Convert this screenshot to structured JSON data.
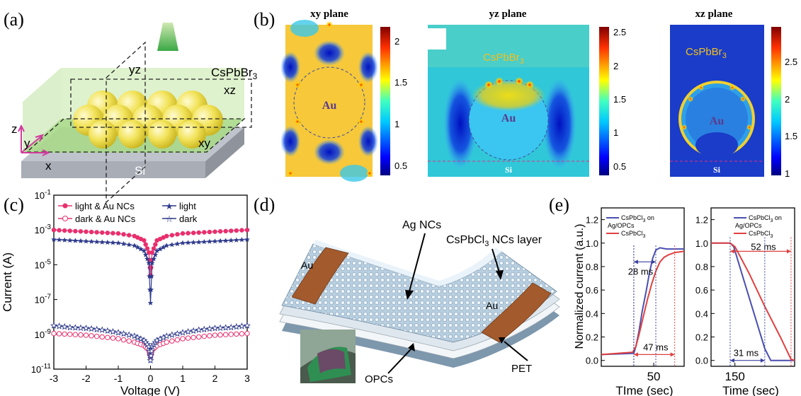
{
  "panels": {
    "a": {
      "label": "(a)",
      "labels": {
        "yz": "yz",
        "xz": "xz",
        "xy": "xy",
        "material": "CsPbBr",
        "material_sub": "3",
        "substrate": "Si",
        "axis_z": "z",
        "axis_y": "y",
        "axis_x": "x"
      }
    },
    "b": {
      "label": "(b)",
      "maps": [
        {
          "title": "xy plane",
          "particle": "Au",
          "ticks": [
            "2",
            "1.5",
            "1",
            "0.5"
          ]
        },
        {
          "title": "yz plane",
          "particle": "Au",
          "material": "CsPbBr",
          "material_sub": "3",
          "substrate": "Si",
          "ticks": [
            "2.5",
            "2",
            "1.5",
            "1",
            "0.5"
          ]
        },
        {
          "title": "xz plane",
          "particle": "Au",
          "material": "CsPbBr",
          "material_sub": "3",
          "substrate": "Si",
          "ticks": [
            "2.5",
            "2",
            "1.5",
            "1"
          ]
        }
      ]
    },
    "c": {
      "label": "(c)"
    },
    "d": {
      "label": "(d)",
      "labels": {
        "ag": "Ag NCs",
        "layer": "CsPbCl",
        "layer_sub": "3",
        "layer_suffix": " NCs layer",
        "au_left": "Au",
        "au_right": "Au",
        "opcs": "OPCs",
        "pet": "PET"
      }
    },
    "e": {
      "label": "(e)"
    }
  },
  "chart_data": [
    {
      "type": "scatter",
      "panel": "c",
      "xlabel": "Voltage (V)",
      "ylabel": "Current (A)",
      "xlim": [
        -3,
        3
      ],
      "ylim_log10": [
        -11,
        -1
      ],
      "xticks": [
        "-3",
        "-2",
        "-1",
        "0",
        "1",
        "2",
        "3"
      ],
      "yticks": [
        {
          "base": "10",
          "exp": "-1"
        },
        {
          "base": "10",
          "exp": "-3"
        },
        {
          "base": "10",
          "exp": "-5"
        },
        {
          "base": "10",
          "exp": "-7"
        },
        {
          "base": "10",
          "exp": "-9"
        },
        {
          "base": "10",
          "exp": "-11"
        }
      ],
      "legend": "top",
      "series": [
        {
          "name": "light & Au NCs",
          "color": "#e8306e",
          "marker": "filled-circle",
          "x": [
            -3,
            -2.5,
            -2,
            -1.5,
            -1,
            -0.5,
            -0.2,
            -0.05,
            0,
            0.05,
            0.2,
            0.5,
            1,
            1.5,
            2,
            2.5,
            3
          ],
          "log10_y": [
            -3.0,
            -3.05,
            -3.1,
            -3.15,
            -3.2,
            -3.35,
            -3.6,
            -4.3,
            -5.6,
            -4.3,
            -3.6,
            -3.35,
            -3.2,
            -3.15,
            -3.1,
            -3.05,
            -3.0
          ]
        },
        {
          "name": "dark & Au NCs",
          "color": "#e8306e",
          "marker": "open-circle",
          "x": [
            -3,
            -2.5,
            -2,
            -1.5,
            -1,
            -0.5,
            -0.2,
            -0.05,
            0,
            0.05,
            0.2,
            0.5,
            1,
            1.5,
            2,
            2.5,
            3
          ],
          "log10_y": [
            -8.95,
            -9.0,
            -9.05,
            -9.15,
            -9.25,
            -9.45,
            -9.65,
            -9.9,
            -10.3,
            -9.9,
            -9.65,
            -9.45,
            -9.25,
            -9.15,
            -9.05,
            -9.0,
            -8.95
          ]
        },
        {
          "name": "light",
          "color": "#2e3a8c",
          "marker": "filled-star",
          "x": [
            -3,
            -2.5,
            -2,
            -1.5,
            -1,
            -0.5,
            -0.2,
            -0.05,
            0,
            0.05,
            0.2,
            0.5,
            1,
            1.5,
            2,
            2.5,
            3
          ],
          "log10_y": [
            -3.55,
            -3.6,
            -3.65,
            -3.7,
            -3.75,
            -3.9,
            -4.2,
            -4.9,
            -7.2,
            -4.9,
            -4.2,
            -3.9,
            -3.75,
            -3.7,
            -3.65,
            -3.6,
            -3.55
          ]
        },
        {
          "name": "dark",
          "color": "#2e3a8c",
          "marker": "open-star",
          "x": [
            -3,
            -2.5,
            -2,
            -1.5,
            -1,
            -0.5,
            -0.2,
            -0.05,
            0,
            0.05,
            0.2,
            0.5,
            1,
            1.5,
            2,
            2.5,
            3
          ],
          "log10_y": [
            -8.5,
            -8.6,
            -8.65,
            -8.75,
            -8.9,
            -9.1,
            -9.35,
            -9.7,
            -10.5,
            -9.7,
            -9.35,
            -9.1,
            -8.9,
            -8.75,
            -8.65,
            -8.6,
            -8.5
          ]
        }
      ]
    },
    {
      "type": "line",
      "panel": "e-rise",
      "xlabel": "TIme (sec)",
      "ylabel": "Normalized current (a.u.)",
      "ylim": [
        -0.05,
        1.3
      ],
      "yticks": [
        "0.0",
        "0.2",
        "0.4",
        "0.6",
        "0.8",
        "1.0",
        "1.2"
      ],
      "xticks": [
        "50"
      ],
      "annotations": [
        "28 ms",
        "47 ms"
      ],
      "series": [
        {
          "name": "CsPbCl",
          "name_sub": "3",
          "name_suffix": " on Ag/OPCs",
          "color": "#4a4fb0",
          "x": [
            0,
            31,
            33,
            36,
            39,
            43,
            46,
            49,
            52,
            56,
            62,
            70,
            79
          ],
          "y": [
            0.05,
            0.06,
            0.12,
            0.25,
            0.42,
            0.6,
            0.75,
            0.87,
            0.94,
            0.96,
            0.95,
            0.95,
            0.95
          ]
        },
        {
          "name": "CsPbCl",
          "name_sub": "3",
          "name_suffix": "",
          "color": "#e04040",
          "x": [
            0,
            30,
            33,
            36,
            40,
            44,
            48,
            52,
            56,
            60,
            64,
            70,
            79
          ],
          "y": [
            0.05,
            0.07,
            0.12,
            0.22,
            0.37,
            0.52,
            0.65,
            0.76,
            0.84,
            0.88,
            0.9,
            0.92,
            0.93
          ]
        }
      ]
    },
    {
      "type": "line",
      "panel": "e-decay",
      "xlabel": "Time (sec)",
      "ylabel": "",
      "ylim": [
        -0.05,
        1.3
      ],
      "yticks": [
        "0.0",
        "0.2",
        "0.4",
        "0.6",
        "0.8",
        "1.0",
        "1.2"
      ],
      "xticks": [
        "150"
      ],
      "annotations": [
        "52 ms",
        "31 ms"
      ],
      "series": [
        {
          "name": "CsPbCl",
          "name_sub": "3",
          "name_suffix": " on Ag/OPCs",
          "color": "#4a4fb0",
          "x": [
            130,
            146,
            149,
            157,
            166,
            175,
            180,
            200
          ],
          "y": [
            1.0,
            1.0,
            0.97,
            0.7,
            0.4,
            0.1,
            0.0,
            0.0
          ]
        },
        {
          "name": "CsPbCl",
          "name_sub": "3",
          "name_suffix": "",
          "color": "#e04040",
          "x": [
            130,
            146,
            150,
            162,
            175,
            188,
            197,
            200
          ],
          "y": [
            1.0,
            1.0,
            0.97,
            0.74,
            0.46,
            0.2,
            0.01,
            0.0
          ]
        }
      ]
    }
  ]
}
